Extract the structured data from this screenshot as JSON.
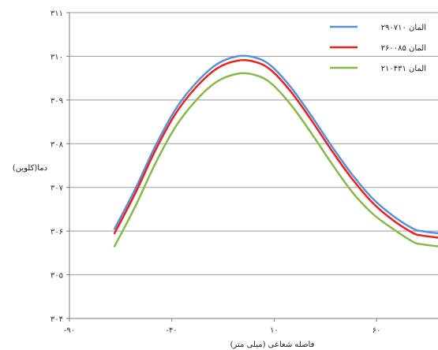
{
  "chart_data": {
    "type": "line",
    "xlabel": "فاصله شعاعی (میلی متر)",
    "ylabel": "دما(کلوین)",
    "xlim": [
      -90,
      90
    ],
    "ylim": [
      304,
      311
    ],
    "x_ticks": [
      -90,
      -40,
      10,
      60
    ],
    "x_tick_labels": [
      "-۹۰",
      "-۴۰",
      "۱۰",
      "۶۰"
    ],
    "y_ticks": [
      304,
      305,
      306,
      307,
      308,
      309,
      310,
      311
    ],
    "y_tick_labels": [
      "۳۰۴",
      "۳۰۵",
      "۳۰۶",
      "۳۰۷",
      "۳۰۸",
      "۳۰۹",
      "۳۱۰",
      "۳۱۱"
    ],
    "grid": "horizontal",
    "legend_position": "top-right",
    "x": [
      -68,
      -58,
      -48,
      -38,
      -28,
      -18,
      -8,
      0,
      8,
      18,
      28,
      38,
      48,
      58,
      68,
      78,
      82,
      90
    ],
    "series": [
      {
        "name": "۲۹۰۷۱۰ المان",
        "color": "#5b8fd6",
        "values": [
          306.05,
          306.95,
          307.95,
          308.8,
          309.4,
          309.82,
          310.0,
          309.98,
          309.8,
          309.3,
          308.65,
          307.95,
          307.3,
          306.75,
          306.35,
          306.05,
          306.0,
          305.95
        ]
      },
      {
        "name": "۲۶۰۰۸۵ المان",
        "color": "#e8231f",
        "values": [
          305.95,
          306.85,
          307.85,
          308.7,
          309.3,
          309.72,
          309.9,
          309.88,
          309.7,
          309.2,
          308.55,
          307.85,
          307.2,
          306.65,
          306.25,
          305.95,
          305.9,
          305.85
        ]
      },
      {
        "name": "۲۱۰۴۳۱ المان",
        "color": "#88b84a",
        "values": [
          305.65,
          306.55,
          307.55,
          308.4,
          309.0,
          309.42,
          309.6,
          309.58,
          309.4,
          308.9,
          308.25,
          307.55,
          306.9,
          306.4,
          306.05,
          305.75,
          305.7,
          305.65
        ]
      }
    ]
  }
}
